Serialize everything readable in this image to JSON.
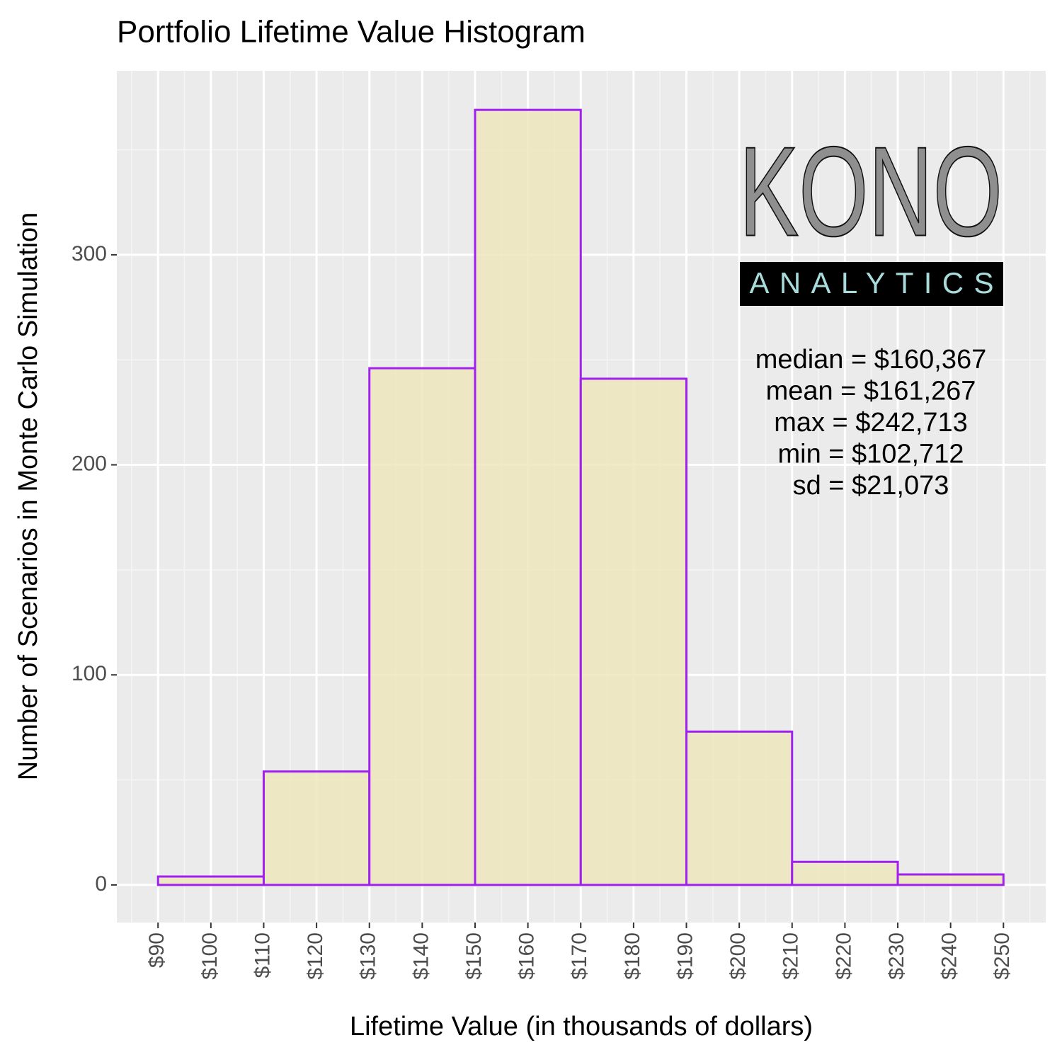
{
  "chart_data": {
    "type": "histogram",
    "title": "Portfolio Lifetime Value Histogram",
    "x_label": "Lifetime Value (in thousands of dollars)",
    "y_label": "Number of Scenarios in Monte Carlo Simulation",
    "bins": [
      90,
      110,
      130,
      150,
      170,
      190,
      210,
      230,
      250
    ],
    "values": [
      4,
      54,
      246,
      369,
      241,
      73,
      11,
      5
    ],
    "fill": "#EFE6BD",
    "color": "#A020F0",
    "xlim": [
      82.2,
      258.0
    ],
    "ylim": [
      -17.9,
      387.6
    ],
    "xticks": [
      {
        "value": 90,
        "label": "$90"
      },
      {
        "value": 100,
        "label": "$100"
      },
      {
        "value": 110,
        "label": "$110"
      },
      {
        "value": 120,
        "label": "$120"
      },
      {
        "value": 130,
        "label": "$130"
      },
      {
        "value": 140,
        "label": "$140"
      },
      {
        "value": 150,
        "label": "$150"
      },
      {
        "value": 160,
        "label": "$160"
      },
      {
        "value": 170,
        "label": "$170"
      },
      {
        "value": 180,
        "label": "$180"
      },
      {
        "value": 190,
        "label": "$190"
      },
      {
        "value": 200,
        "label": "$200"
      },
      {
        "value": 210,
        "label": "$210"
      },
      {
        "value": 220,
        "label": "$220"
      },
      {
        "value": 230,
        "label": "$230"
      },
      {
        "value": 240,
        "label": "$240"
      },
      {
        "value": 250,
        "label": "$250"
      }
    ],
    "yticks": [
      0,
      100,
      200,
      300
    ],
    "grid": true,
    "annotations": [
      "median = $160,367",
      "mean = $161,267",
      "max = $242,713",
      "min = $102,712",
      "sd = $21,073"
    ],
    "logo": {
      "name": "KONO",
      "tagline": "ANALYTICS"
    }
  }
}
